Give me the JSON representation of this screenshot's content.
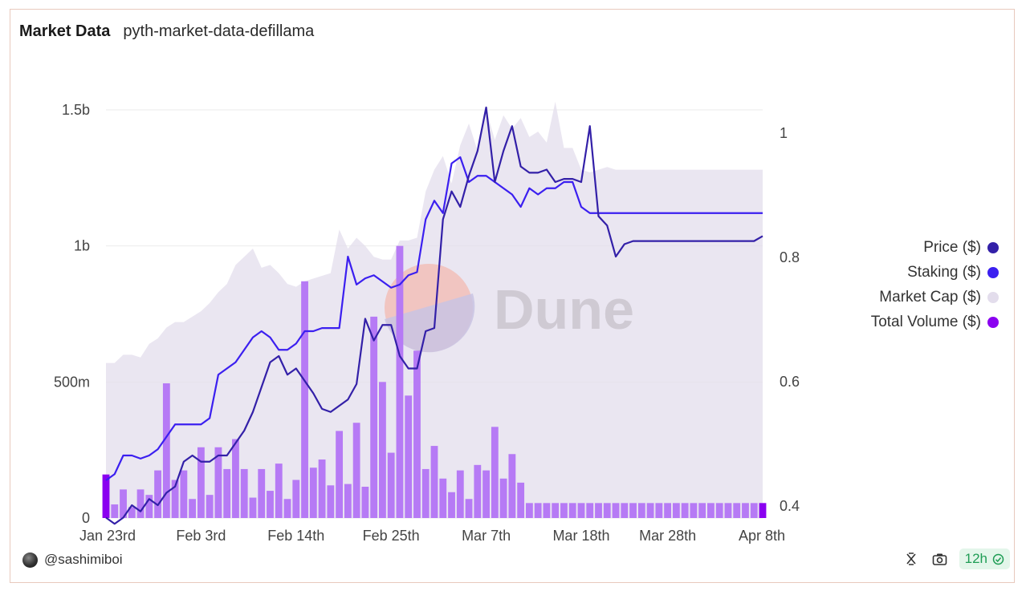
{
  "header": {
    "title": "Market Data",
    "subtitle": "pyth-market-data-defillama"
  },
  "footer": {
    "author": "@sashimiboi",
    "refresh": "12h"
  },
  "icons": {
    "avatar": "avatar-icon",
    "refresh": "refresh-cycle-icon",
    "camera": "camera-icon",
    "check": "check-circle-icon"
  },
  "watermark": "Dune",
  "colors": {
    "price": "#3320a8",
    "staking": "#3b1ff0",
    "market_cap": "#e3ddec",
    "total_volume": "#b67af5",
    "total_volume_edge": "#8a00f0",
    "badge_green": "#1f9d55"
  },
  "chart_data": {
    "type": "combo",
    "x": [
      "Jan 23rd",
      "Jan 24th",
      "Jan 25th",
      "Jan 26th",
      "Jan 27th",
      "Jan 28th",
      "Jan 29th",
      "Jan 30th",
      "Jan 31st",
      "Feb 1st",
      "Feb 2nd",
      "Feb 3rd",
      "Feb 4th",
      "Feb 5th",
      "Feb 6th",
      "Feb 7th",
      "Feb 8th",
      "Feb 9th",
      "Feb 10th",
      "Feb 11th",
      "Feb 12th",
      "Feb 13th",
      "Feb 14th",
      "Feb 15th",
      "Feb 16th",
      "Feb 17th",
      "Feb 18th",
      "Feb 19th",
      "Feb 20th",
      "Feb 21st",
      "Feb 22nd",
      "Feb 23rd",
      "Feb 24th",
      "Feb 25th",
      "Feb 26th",
      "Feb 27th",
      "Feb 28th",
      "Feb 29th",
      "Mar 1st",
      "Mar 2nd",
      "Mar 3rd",
      "Mar 4th",
      "Mar 5th",
      "Mar 6th",
      "Mar 7th",
      "Mar 8th",
      "Mar 9th",
      "Mar 10th",
      "Mar 11th",
      "Mar 12th",
      "Mar 13th",
      "Mar 14th",
      "Mar 15th",
      "Mar 16th",
      "Mar 17th",
      "Mar 18th",
      "Mar 19th",
      "Mar 20th",
      "Mar 21st",
      "Mar 22nd",
      "Mar 23rd",
      "Mar 24th",
      "Mar 25th",
      "Mar 26th",
      "Mar 27th",
      "Mar 28th",
      "Mar 29th",
      "Mar 30th",
      "Mar 31st",
      "Apr 1st",
      "Apr 2nd",
      "Apr 3rd",
      "Apr 4th",
      "Apr 5th",
      "Apr 6th",
      "Apr 7th",
      "Apr 8th"
    ],
    "x_ticks": [
      "Jan 23rd",
      "Feb 3rd",
      "Feb 14th",
      "Feb 25th",
      "Mar 7th",
      "Mar 18th",
      "Mar 28th",
      "Apr 8th"
    ],
    "y_left_ticks": [
      "0",
      "500m",
      "1b",
      "1.5b"
    ],
    "y_left_range": [
      0,
      1500000000
    ],
    "y_right_ticks": [
      "0.4",
      "0.6",
      "0.8",
      "1"
    ],
    "y_right_range": [
      0.4,
      1.0
    ],
    "legend_position": "right",
    "grid": true,
    "series": [
      {
        "name": "Price ($)",
        "type": "line",
        "axis": "right",
        "values": [
          0.38,
          0.37,
          0.38,
          0.4,
          0.39,
          0.41,
          0.4,
          0.42,
          0.43,
          0.47,
          0.48,
          0.47,
          0.47,
          0.48,
          0.48,
          0.5,
          0.52,
          0.55,
          0.59,
          0.63,
          0.64,
          0.61,
          0.62,
          0.6,
          0.58,
          0.555,
          0.55,
          0.56,
          0.57,
          0.595,
          0.7,
          0.665,
          0.69,
          0.69,
          0.64,
          0.62,
          0.62,
          0.68,
          0.685,
          0.86,
          0.905,
          0.88,
          0.93,
          0.97,
          1.04,
          0.92,
          0.97,
          1.01,
          0.945,
          0.935,
          0.935,
          0.94,
          0.92,
          0.925,
          0.925,
          0.92,
          1.01,
          0.865,
          0.85,
          0.8,
          0.82,
          0.825,
          0.825,
          0.825,
          0.825,
          0.825,
          0.825,
          0.825,
          0.825,
          0.825,
          0.825,
          0.825,
          0.825,
          0.825,
          0.825,
          0.825,
          0.833
        ]
      },
      {
        "name": "Staking ($)",
        "type": "line",
        "axis": "right",
        "values": [
          0.44,
          0.45,
          0.48,
          0.48,
          0.475,
          0.48,
          0.49,
          0.51,
          0.53,
          0.53,
          0.53,
          0.53,
          0.54,
          0.61,
          0.62,
          0.63,
          0.65,
          0.67,
          0.68,
          0.67,
          0.65,
          0.65,
          0.66,
          0.68,
          0.68,
          0.685,
          0.685,
          0.685,
          0.8,
          0.755,
          0.765,
          0.77,
          0.76,
          0.75,
          0.755,
          0.77,
          0.775,
          0.86,
          0.89,
          0.87,
          0.95,
          0.96,
          0.92,
          0.93,
          0.93,
          0.92,
          0.91,
          0.9,
          0.88,
          0.91,
          0.9,
          0.91,
          0.91,
          0.92,
          0.92,
          0.88,
          0.87,
          0.87,
          0.87,
          0.87,
          0.87,
          0.87,
          0.87,
          0.87,
          0.87,
          0.87,
          0.87,
          0.87,
          0.87,
          0.87,
          0.87,
          0.87,
          0.87,
          0.87,
          0.87,
          0.87,
          0.87
        ]
      },
      {
        "name": "Market Cap ($)",
        "type": "area",
        "axis": "left",
        "values": [
          570000000,
          570000000,
          600000000,
          600000000,
          590000000,
          640000000,
          660000000,
          700000000,
          720000000,
          720000000,
          740000000,
          760000000,
          790000000,
          830000000,
          860000000,
          930000000,
          960000000,
          990000000,
          920000000,
          930000000,
          900000000,
          860000000,
          850000000,
          870000000,
          880000000,
          890000000,
          900000000,
          1060000000,
          990000000,
          1030000000,
          1000000000,
          960000000,
          950000000,
          950000000,
          1020000000,
          1020000000,
          1030000000,
          1200000000,
          1280000000,
          1330000000,
          1230000000,
          1370000000,
          1450000000,
          1350000000,
          1500000000,
          1390000000,
          1480000000,
          1430000000,
          1470000000,
          1400000000,
          1420000000,
          1380000000,
          1530000000,
          1360000000,
          1360000000,
          1280000000,
          1270000000,
          1280000000,
          1290000000,
          1280000000,
          1280000000,
          1280000000,
          1280000000,
          1280000000,
          1280000000,
          1280000000,
          1280000000,
          1280000000,
          1280000000,
          1280000000,
          1280000000,
          1280000000,
          1280000000,
          1280000000,
          1280000000,
          1280000000,
          1280000000
        ]
      },
      {
        "name": "Total Volume ($)",
        "type": "bar",
        "axis": "left",
        "values": [
          160000000,
          50000000,
          105000000,
          40000000,
          105000000,
          85000000,
          175000000,
          495000000,
          140000000,
          175000000,
          70000000,
          260000000,
          85000000,
          260000000,
          180000000,
          290000000,
          180000000,
          75000000,
          180000000,
          100000000,
          200000000,
          70000000,
          140000000,
          870000000,
          185000000,
          215000000,
          120000000,
          320000000,
          125000000,
          350000000,
          115000000,
          740000000,
          500000000,
          240000000,
          1000000000,
          450000000,
          615000000,
          180000000,
          265000000,
          145000000,
          95000000,
          175000000,
          70000000,
          195000000,
          175000000,
          335000000,
          145000000,
          235000000,
          130000000,
          55000000,
          55000000,
          55000000,
          55000000,
          55000000,
          55000000,
          55000000,
          55000000,
          55000000,
          55000000,
          55000000,
          55000000,
          55000000,
          55000000,
          55000000,
          55000000,
          55000000,
          55000000,
          55000000,
          55000000,
          55000000,
          55000000,
          55000000,
          55000000,
          55000000,
          55000000,
          55000000,
          55000000
        ]
      }
    ]
  }
}
